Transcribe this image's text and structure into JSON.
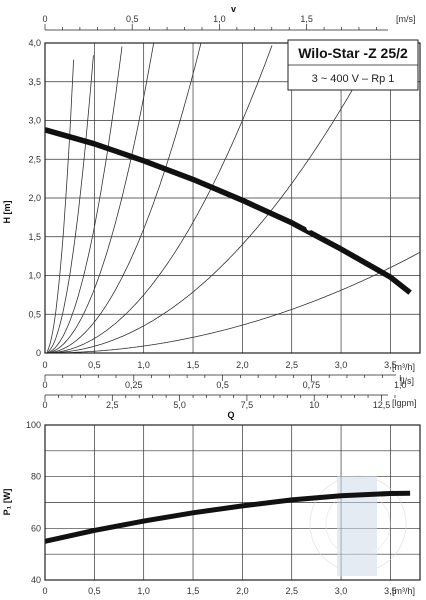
{
  "chart_data": [
    {
      "type": "line",
      "title": "Wilo-Star -Z 25/2",
      "subtitle": "3 ~ 400 V – Rp 1",
      "xlabel": "[m³/h]",
      "ylabel": "H [m]",
      "xlim": [
        0,
        3.8
      ],
      "ylim": [
        0,
        4.0
      ],
      "x_ticks": [
        "0",
        "0,5",
        "1,0",
        "1,5",
        "2,0",
        "2,5",
        "3,0",
        "3,5"
      ],
      "y_ticks": [
        "0",
        "0,5",
        "1,0",
        "1,5",
        "2,0",
        "2,5",
        "3,0",
        "3,5",
        "4,0"
      ],
      "grid": true,
      "pump_curve": {
        "x": [
          0,
          0.5,
          1.0,
          1.5,
          2.0,
          2.5,
          3.0,
          3.5,
          3.7
        ],
        "y": [
          2.88,
          2.7,
          2.48,
          2.24,
          1.97,
          1.68,
          1.34,
          0.98,
          0.78
        ]
      },
      "system_curves_k": [
        45,
        16,
        6.5,
        3.3,
        1.6,
        0.75,
        0.35,
        0.09
      ],
      "top_axis": {
        "label": "v",
        "unit": "[m/s]",
        "ticks": [
          "0",
          "0,5",
          "1,0",
          "1,5"
        ],
        "max": 2.15
      },
      "secondary_axes": [
        {
          "unit": "[l/s]",
          "ticks": [
            "0",
            "0,25",
            "0,5",
            "0,75",
            "1,0"
          ],
          "max": 1.0556
        },
        {
          "unit": "[lgpm]",
          "ticks": [
            "0",
            "2,5",
            "5,0",
            "7,5",
            "10",
            "12,5"
          ],
          "max": 13.93
        }
      ],
      "q_label": "Q"
    },
    {
      "type": "line",
      "xlabel": "[m³/h]",
      "ylabel": "P₁ [W]",
      "xlim": [
        0,
        3.8
      ],
      "ylim": [
        40,
        100
      ],
      "x_ticks": [
        "0",
        "0,5",
        "1,0",
        "1,5",
        "2,0",
        "2,5",
        "3,0",
        "3,5"
      ],
      "y_ticks": [
        "40",
        "60",
        "80",
        "100"
      ],
      "grid": true,
      "power_curve": {
        "x": [
          0,
          0.5,
          1.0,
          1.5,
          2.0,
          2.5,
          3.0,
          3.5,
          3.7
        ],
        "y": [
          55,
          59.2,
          62.8,
          66,
          68.7,
          71,
          72.6,
          73.5,
          73.6
        ]
      }
    }
  ]
}
